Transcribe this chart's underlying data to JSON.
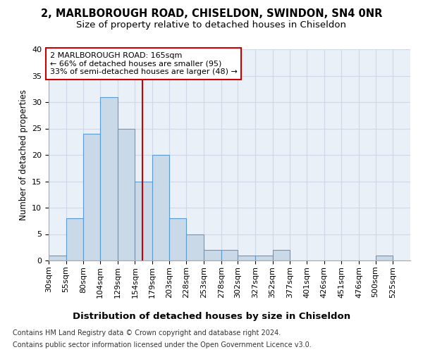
{
  "title1": "2, MARLBOROUGH ROAD, CHISELDON, SWINDON, SN4 0NR",
  "title2": "Size of property relative to detached houses in Chiseldon",
  "xlabel": "Distribution of detached houses by size in Chiseldon",
  "ylabel": "Number of detached properties",
  "footnote1": "Contains HM Land Registry data © Crown copyright and database right 2024.",
  "footnote2": "Contains public sector information licensed under the Open Government Licence v3.0.",
  "bin_labels": [
    "30sqm",
    "55sqm",
    "80sqm",
    "104sqm",
    "129sqm",
    "154sqm",
    "179sqm",
    "203sqm",
    "228sqm",
    "253sqm",
    "278sqm",
    "302sqm",
    "327sqm",
    "352sqm",
    "377sqm",
    "401sqm",
    "426sqm",
    "451sqm",
    "476sqm",
    "500sqm",
    "525sqm"
  ],
  "bin_edges": [
    30,
    55,
    80,
    104,
    129,
    154,
    179,
    203,
    228,
    253,
    278,
    302,
    327,
    352,
    377,
    401,
    426,
    451,
    476,
    500,
    525,
    550
  ],
  "values": [
    1,
    8,
    24,
    31,
    25,
    15,
    20,
    8,
    5,
    2,
    2,
    1,
    1,
    2,
    0,
    0,
    0,
    0,
    0,
    1,
    0
  ],
  "bar_color": "#c9d9e8",
  "bar_edge_color": "#5b9bd5",
  "bar_edge_width": 0.8,
  "grid_color": "#d0d8e8",
  "bg_color": "#eaf0f8",
  "reference_line_x": 165,
  "reference_line_color": "#cc0000",
  "annotation_text": "2 MARLBOROUGH ROAD: 165sqm\n← 66% of detached houses are smaller (95)\n33% of semi-detached houses are larger (48) →",
  "annotation_box_color": "#ffffff",
  "annotation_box_edge": "#cc0000",
  "ylim": [
    0,
    40
  ],
  "yticks": [
    0,
    5,
    10,
    15,
    20,
    25,
    30,
    35,
    40
  ],
  "title1_fontsize": 10.5,
  "title2_fontsize": 9.5,
  "xlabel_fontsize": 9.5,
  "ylabel_fontsize": 8.5,
  "tick_fontsize": 8,
  "annotation_fontsize": 8,
  "footnote_fontsize": 7
}
